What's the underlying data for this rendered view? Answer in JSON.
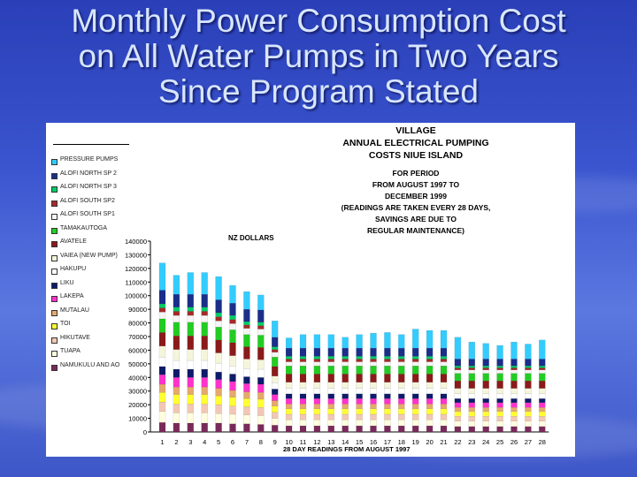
{
  "slide": {
    "title_line1": "Monthly Power Consumption Cost",
    "title_line2": "on All Water Pumps in Two Years",
    "title_line3": "Since Program Stated"
  },
  "chart_data": {
    "type": "bar",
    "stacked": true,
    "title": [
      "VILLAGE",
      "ANNUAL ELECTRICAL PUMPING",
      "COSTS NIUE ISLAND"
    ],
    "subtitle": [
      "FOR PERIOD",
      "FROM AUGUST 1997 TO",
      "DECEMBER 1999",
      "(READINGS ARE TAKEN EVERY 28 DAYS,",
      "SAVINGS ARE DUE TO",
      "REGULAR MAINTENANCE)"
    ],
    "ylabel": "NZ DOLLARS",
    "xlabel": "28 DAY READINGS FROM AUGUST 1997",
    "ylim": [
      0,
      140000
    ],
    "yticks": [
      0,
      10000,
      20000,
      30000,
      40000,
      50000,
      60000,
      70000,
      80000,
      90000,
      100000,
      110000,
      120000,
      130000,
      140000
    ],
    "categories": [
      "1",
      "2",
      "3",
      "4",
      "5",
      "6",
      "7",
      "8",
      "9",
      "10",
      "11",
      "12",
      "13",
      "14",
      "15",
      "16",
      "17",
      "18",
      "19",
      "20",
      "21",
      "22",
      "23",
      "24",
      "25",
      "26",
      "27",
      "28"
    ],
    "series": [
      {
        "name": "NAMUKULU AND AO",
        "color": "#7a2a5a",
        "values": [
          7000,
          6500,
          6500,
          6500,
          6500,
          6000,
          6000,
          5500,
          5000,
          4500,
          4500,
          4500,
          4500,
          4500,
          4500,
          4500,
          4500,
          4500,
          4500,
          4500,
          4500,
          4000,
          4000,
          4000,
          4000,
          4000,
          4000,
          4000
        ]
      },
      {
        "name": "TUAPA",
        "color": "#ffffe0",
        "values": [
          8000,
          7500,
          7500,
          7500,
          7000,
          7000,
          6500,
          6500,
          5000,
          4500,
          4500,
          4500,
          4500,
          4500,
          4500,
          4500,
          4500,
          4500,
          4500,
          4500,
          4500,
          4000,
          4000,
          4000,
          4000,
          4000,
          4000,
          4000
        ]
      },
      {
        "name": "HIKUTAVE",
        "color": "#f2c7b4",
        "values": [
          7000,
          6500,
          6500,
          6500,
          6500,
          6000,
          6000,
          6000,
          4500,
          4000,
          4000,
          4000,
          4000,
          4000,
          4000,
          4000,
          4000,
          4000,
          4000,
          4000,
          4000,
          3500,
          3500,
          3500,
          3500,
          3500,
          3500,
          3500
        ]
      },
      {
        "name": "TOI",
        "color": "#ffff33",
        "values": [
          7000,
          7000,
          7000,
          7000,
          6500,
          6500,
          6000,
          6000,
          4500,
          4000,
          4000,
          4000,
          4000,
          4000,
          4000,
          4000,
          4000,
          4000,
          4000,
          4000,
          4000,
          3500,
          3500,
          3500,
          3500,
          3500,
          3500,
          3500
        ]
      },
      {
        "name": "MUTALAU",
        "color": "#e5a96b",
        "values": [
          6000,
          5500,
          5500,
          5500,
          5500,
          5000,
          5000,
          5000,
          4000,
          3500,
          3500,
          3500,
          3500,
          3500,
          3500,
          3500,
          3500,
          3500,
          3500,
          3500,
          3500,
          3000,
          3000,
          3000,
          3000,
          3000,
          3000,
          3000
        ]
      },
      {
        "name": "LAKEPA",
        "color": "#ff33cc",
        "values": [
          7000,
          7000,
          7000,
          7000,
          6500,
          6500,
          6000,
          6000,
          4500,
          4000,
          4000,
          4000,
          4000,
          4000,
          4000,
          4000,
          4000,
          4000,
          4000,
          4000,
          4000,
          3500,
          3500,
          3500,
          3500,
          3500,
          3500,
          3500
        ]
      },
      {
        "name": "LIKU",
        "color": "#0d1b6a",
        "values": [
          6000,
          6000,
          6000,
          6000,
          5500,
          5500,
          5000,
          5000,
          4000,
          3500,
          3500,
          3500,
          3500,
          3500,
          3500,
          3500,
          3500,
          3500,
          3500,
          3500,
          3500,
          3000,
          3000,
          3000,
          3000,
          3000,
          3000,
          3000
        ]
      },
      {
        "name": "HAKUPU",
        "color": "#ffffff",
        "values": [
          7000,
          6500,
          6500,
          6500,
          6500,
          6000,
          6000,
          6000,
          4500,
          4000,
          4000,
          4000,
          4000,
          4000,
          4000,
          4000,
          4000,
          4000,
          4000,
          4000,
          4000,
          3500,
          3500,
          3500,
          3500,
          3500,
          3500,
          3500
        ]
      },
      {
        "name": "VAIEA (NEW PUMP)",
        "color": "#f5f5dc",
        "values": [
          8000,
          8000,
          8000,
          8000,
          7500,
          7500,
          7000,
          7000,
          5000,
          4500,
          4500,
          4500,
          4500,
          4500,
          4500,
          4500,
          4500,
          4500,
          4500,
          4500,
          4500,
          4000,
          4000,
          4000,
          4000,
          4000,
          4000,
          4000
        ]
      },
      {
        "name": "AVATELE",
        "color": "#8b1a1a",
        "values": [
          10000,
          10000,
          10000,
          10000,
          9500,
          9500,
          9000,
          9000,
          7000,
          6000,
          6000,
          6000,
          6000,
          6000,
          6000,
          6000,
          6000,
          6000,
          6000,
          6000,
          6000,
          5500,
          5500,
          5500,
          5500,
          5500,
          5500,
          5500
        ]
      },
      {
        "name": "TAMAKAUTOGA",
        "color": "#22cc22",
        "values": [
          10000,
          10000,
          10000,
          10000,
          9500,
          9500,
          9000,
          9000,
          7000,
          6000,
          6000,
          6000,
          6000,
          6000,
          6000,
          6000,
          6000,
          6000,
          6000,
          6000,
          6000,
          5500,
          5500,
          5500,
          5500,
          5500,
          5500,
          5500
        ]
      },
      {
        "name": "ALOFI SOUTH SP1",
        "color": "#f5f5f5",
        "values": [
          5000,
          5000,
          5000,
          5000,
          4500,
          4500,
          4500,
          4500,
          3500,
          3000,
          3000,
          3000,
          3000,
          3000,
          3000,
          3000,
          3000,
          3000,
          3000,
          3000,
          3000,
          2500,
          2500,
          2500,
          2500,
          2500,
          2500,
          2500
        ]
      },
      {
        "name": "ALOFI SOUTH SP2",
        "color": "#a52a2a",
        "values": [
          3000,
          3000,
          3000,
          3000,
          3000,
          3000,
          2500,
          2500,
          2000,
          2000,
          2000,
          2000,
          2000,
          2000,
          2000,
          2000,
          2000,
          2000,
          2000,
          2000,
          2000,
          1500,
          1500,
          1500,
          1500,
          1500,
          1500,
          1500
        ]
      },
      {
        "name": "ALOFI NORTH SP 3",
        "color": "#00cc66",
        "values": [
          3000,
          3000,
          3000,
          3000,
          3000,
          3000,
          2500,
          2500,
          2000,
          2000,
          2000,
          2000,
          2000,
          2000,
          2000,
          2000,
          2000,
          2000,
          2000,
          2000,
          2000,
          1500,
          1500,
          1500,
          1500,
          1500,
          1500,
          1500
        ]
      },
      {
        "name": "ALOFI NORTH SP 2",
        "color": "#1a2e8a",
        "values": [
          10000,
          9500,
          9500,
          9500,
          9500,
          9000,
          9000,
          9000,
          7000,
          6000,
          6000,
          6000,
          6000,
          6000,
          6000,
          6000,
          6000,
          6000,
          6000,
          6000,
          6000,
          5000,
          5000,
          5000,
          5000,
          5000,
          5000,
          5000
        ]
      },
      {
        "name": "PRESSURE PUMPS",
        "color": "#33ccff",
        "values": [
          20000,
          14000,
          16000,
          16000,
          17000,
          13000,
          13000,
          11000,
          12000,
          7500,
          10000,
          10000,
          10000,
          8000,
          10000,
          11000,
          11500,
          10000,
          14000,
          13000,
          13000,
          16000,
          12500,
          11500,
          10000,
          12500,
          11000,
          14000
        ]
      }
    ]
  }
}
